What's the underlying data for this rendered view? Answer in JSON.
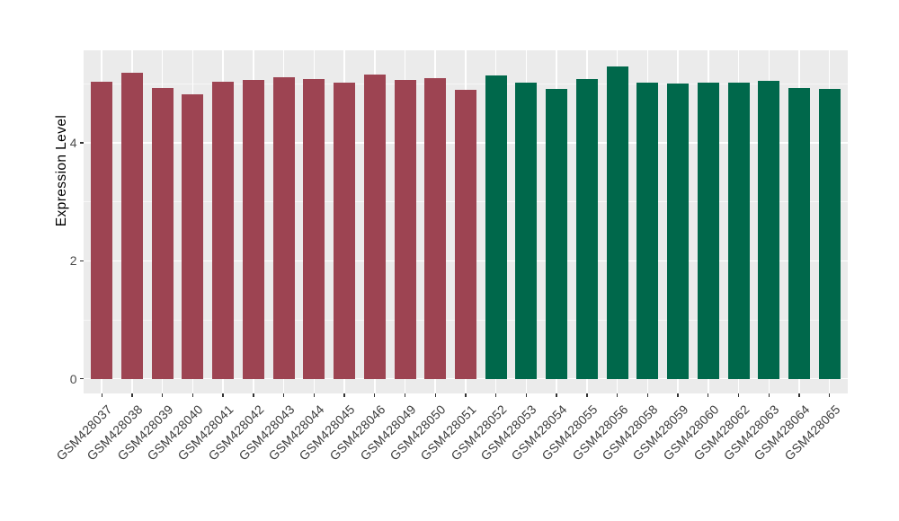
{
  "chart_data": {
    "type": "bar",
    "title": "",
    "xlabel": "",
    "ylabel": "Expression Level",
    "ylim": [
      0,
      5.55
    ],
    "yticks_major": [
      0,
      2,
      4
    ],
    "yticks_minor": [
      1,
      3,
      5
    ],
    "grid": "white major+minor horizontal lines and vertical category lines on grey panel",
    "legend_position": "none",
    "panel_background": "#EBEBEB",
    "categories": [
      "GSM428037",
      "GSM428038",
      "GSM428039",
      "GSM428040",
      "GSM428041",
      "GSM428042",
      "GSM428043",
      "GSM428044",
      "GSM428045",
      "GSM428046",
      "GSM428049",
      "GSM428050",
      "GSM428051",
      "GSM428052",
      "GSM428053",
      "GSM428054",
      "GSM428055",
      "GSM428056",
      "GSM428058",
      "GSM428059",
      "GSM428060",
      "GSM428062",
      "GSM428063",
      "GSM428064",
      "GSM428065"
    ],
    "values": [
      5.04,
      5.19,
      4.92,
      4.82,
      5.04,
      5.06,
      5.11,
      5.08,
      5.02,
      5.16,
      5.07,
      5.09,
      4.9,
      5.14,
      5.02,
      4.91,
      5.08,
      5.29,
      5.02,
      5.01,
      5.02,
      5.02,
      5.05,
      4.93,
      4.91
    ],
    "group_of_bar": [
      0,
      0,
      0,
      0,
      0,
      0,
      0,
      0,
      0,
      0,
      0,
      0,
      0,
      1,
      1,
      1,
      1,
      1,
      1,
      1,
      1,
      1,
      1,
      1,
      1
    ],
    "group_colors": [
      "#9D4452",
      "#00684B"
    ],
    "ytick_labels": [
      "0",
      "2",
      "4"
    ]
  }
}
